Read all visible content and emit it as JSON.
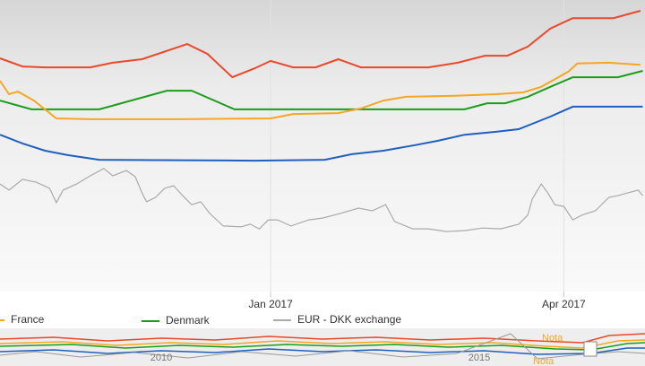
{
  "chart_data": {
    "type": "line",
    "xlim": [
      0,
      28.6
    ],
    "ylim": [
      0,
      100
    ],
    "xticks": [
      {
        "value": 12,
        "label": "Jan 2017"
      },
      {
        "value": 25,
        "label": "Apr 2017"
      }
    ],
    "series": [
      {
        "color": "#e8492a",
        "x": [
          0,
          1,
          2,
          4,
          5,
          6.3,
          8.3,
          9.2,
          10.3,
          11.3,
          12,
          13,
          14,
          15,
          16,
          19,
          20.3,
          21.5,
          22.5,
          23.4,
          24.4,
          25.4,
          27.2,
          28.4
        ],
        "values": [
          80,
          77.2,
          76.9,
          76.9,
          78.5,
          79.7,
          84.9,
          81.5,
          73.5,
          76.6,
          79.1,
          76.9,
          76.9,
          79.7,
          76.9,
          76.9,
          78.5,
          80.9,
          80.9,
          84,
          90.2,
          93.8,
          93.8,
          96.3
        ]
      },
      {
        "name": "France",
        "color": "#f5a623",
        "x": [
          0,
          0.4,
          0.8,
          1.5,
          2.5,
          4,
          8,
          12,
          13,
          15,
          16,
          17,
          18,
          20,
          22,
          23.2,
          24,
          25.2,
          25.6,
          27,
          28.4
        ],
        "values": [
          72.3,
          67.7,
          68.6,
          65.5,
          59.4,
          59.1,
          59.1,
          59.4,
          60.9,
          61.2,
          62.8,
          65.5,
          66.8,
          67.1,
          67.7,
          68.3,
          70.2,
          75.4,
          78.2,
          78.5,
          77.8
        ]
      },
      {
        "name": "Denmark",
        "color": "#1a9e1a",
        "x": [
          0,
          1.4,
          4.4,
          7.4,
          8.5,
          10.4,
          20.6,
          21.6,
          22.4,
          23.4,
          24.4,
          25.4,
          27.4,
          28.5
        ],
        "values": [
          65.5,
          62.5,
          62.5,
          68.9,
          68.9,
          62.5,
          62.5,
          64.6,
          64.6,
          66.8,
          70.2,
          73.5,
          73.5,
          75.7
        ]
      },
      {
        "color": "#1f5fbf",
        "x": [
          0,
          1,
          2,
          3,
          4.4,
          11.3,
          14.4,
          15.6,
          17,
          18.4,
          19.4,
          20.6,
          22,
          23,
          24.4,
          25.4,
          28.5
        ],
        "values": [
          53.8,
          50.8,
          48.3,
          46.8,
          45.2,
          44.9,
          45.2,
          47.1,
          48.3,
          50.2,
          51.7,
          53.8,
          54.8,
          55.7,
          60,
          63.4,
          63.4
        ]
      },
      {
        "name": "EUR - DKK exchange",
        "color": "#aaaaaa",
        "x": [
          0,
          0.4,
          1,
          1.6,
          2.2,
          2.5,
          2.8,
          3.4,
          4,
          4.6,
          5,
          5.6,
          6,
          6.3,
          6.5,
          6.9,
          7.3,
          7.7,
          8.1,
          8.5,
          8.9,
          9.3,
          9.9,
          10.7,
          11.1,
          11.5,
          11.9,
          12.3,
          12.9,
          13.7,
          14.3,
          15.1,
          15.9,
          16.5,
          17.1,
          17.5,
          18.3,
          19,
          19.8,
          20.6,
          21.4,
          22.2,
          23,
          23.4,
          23.6,
          24,
          24.3,
          24.6,
          25,
          25.4,
          25.8,
          26.4,
          27,
          27.4,
          27.8,
          28.3,
          28.5
        ],
        "values": [
          36.9,
          34.8,
          38.5,
          37.5,
          35.4,
          30.5,
          34.8,
          36.9,
          39.7,
          42.2,
          39.7,
          41.5,
          39.4,
          33.8,
          30.8,
          32.3,
          35.4,
          36.3,
          32.9,
          29.8,
          30.8,
          26.8,
          22.5,
          22.2,
          23.1,
          21.5,
          24.6,
          24.6,
          22.5,
          24.6,
          25.2,
          26.8,
          28.6,
          27.7,
          29.8,
          24,
          21.5,
          21.5,
          20.6,
          20.9,
          21.8,
          21.5,
          23.1,
          26.2,
          31.7,
          36.9,
          33.8,
          29.8,
          29.2,
          24.6,
          26.2,
          27.7,
          32.3,
          32.9,
          33.8,
          34.8,
          32.9
        ]
      }
    ],
    "navigator": {
      "labels": [
        "2010",
        "2015"
      ],
      "notes": [
        "Nota",
        "Nota"
      ]
    }
  }
}
